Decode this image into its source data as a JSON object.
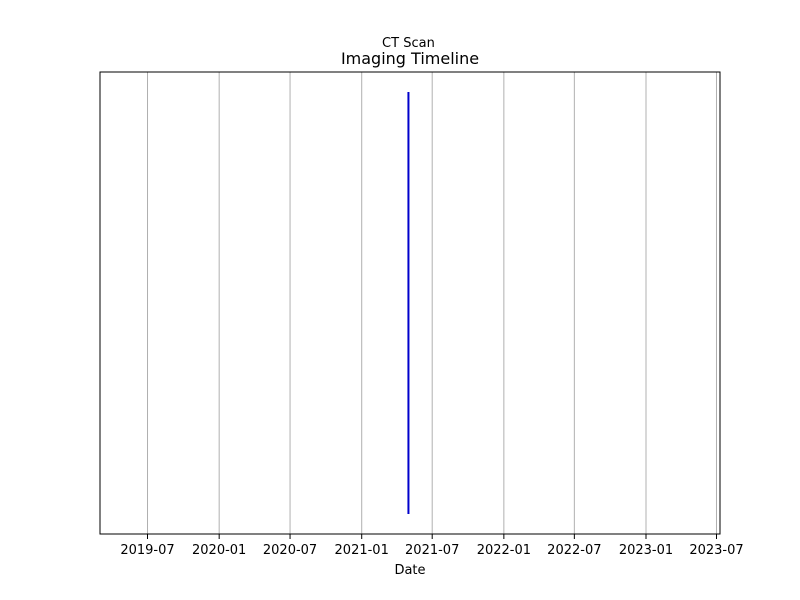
{
  "chart_data": {
    "type": "timeline",
    "title": "Imaging Timeline",
    "xlabel": "Date",
    "ylabel": "",
    "x_axis": "date",
    "xlim": [
      "2019-03-01",
      "2023-07-10"
    ],
    "grid": "x",
    "x_ticks": [
      "2019-07",
      "2020-01",
      "2020-07",
      "2021-01",
      "2021-07",
      "2022-01",
      "2022-07",
      "2023-01",
      "2023-07"
    ],
    "events": [
      {
        "label": "CT Scan",
        "date": "2021-05-01"
      }
    ],
    "colors": {
      "event": "#0000cc",
      "grid": "#b0b0b0"
    }
  }
}
